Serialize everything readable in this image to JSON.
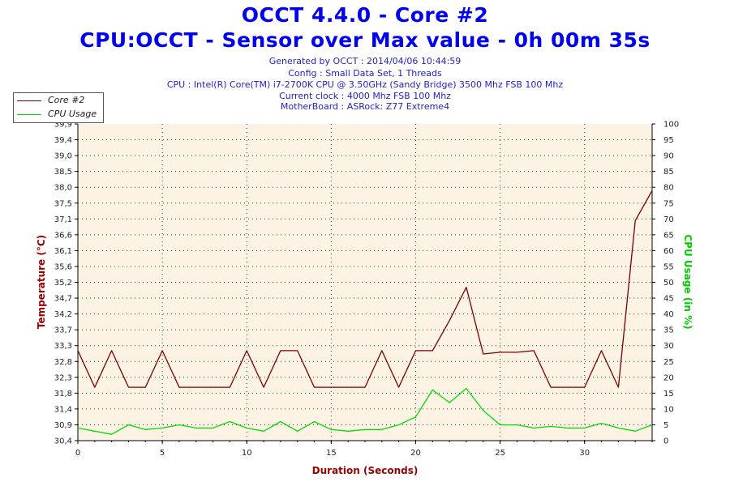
{
  "header": {
    "title": "OCCT 4.4.0 - Core #2",
    "subtitle": "CPU:OCCT - Sensor over Max value - 0h 00m 35s",
    "info_lines": [
      "Generated by OCCT : 2014/04/06 10:44:59",
      "Config : Small Data Set, 1 Threads",
      "CPU : Intel(R) Core(TM) i7-2700K CPU @ 3.50GHz (Sandy Bridge) 3500 Mhz FSB 100 Mhz",
      "Current clock : 4000 Mhz FSB 100 Mhz",
      "MotherBoard : ASRock: Z77 Extreme4"
    ]
  },
  "colors": {
    "background": "#ffffff",
    "plot_background": "#fcf3e4",
    "temperature_line": "#7a0000",
    "cpu_line": "#00dd00",
    "left_axis_title": "#990000",
    "right_axis_title": "#00cc00",
    "x_axis_title": "#990000"
  },
  "chart_data": {
    "type": "line",
    "xlabel": "Duration (Seconds)",
    "ylabel": "Temperature (°C)",
    "y2label": "CPU Usage (in %)",
    "xlim": [
      0,
      34
    ],
    "ylim": [
      30.4,
      39.9
    ],
    "y2lim": [
      0,
      100
    ],
    "x_ticks": [
      "0",
      "5",
      "10",
      "15",
      "20",
      "25",
      "30"
    ],
    "x_tick_values": [
      0,
      5,
      10,
      15,
      20,
      25,
      30
    ],
    "y_ticks": [
      "30,4",
      "30,9",
      "31,4",
      "31,8",
      "32,3",
      "32,8",
      "33,3",
      "33,7",
      "34,2",
      "34,7",
      "35,2",
      "35,6",
      "36,1",
      "36,6",
      "37,1",
      "37,5",
      "38,0",
      "38,5",
      "39,0",
      "39,4",
      "39,9"
    ],
    "y2_ticks": [
      "0",
      "5",
      "10",
      "15",
      "20",
      "25",
      "30",
      "35",
      "40",
      "45",
      "50",
      "55",
      "60",
      "65",
      "70",
      "75",
      "80",
      "85",
      "90",
      "95",
      "100"
    ],
    "grid": true,
    "legend_position": "top-left",
    "series": [
      {
        "name": "Core #2",
        "axis": "left",
        "x": [
          0,
          1,
          2,
          3,
          4,
          5,
          6,
          7,
          8,
          9,
          10,
          11,
          12,
          13,
          14,
          15,
          16,
          17,
          18,
          19,
          20,
          21,
          22,
          23,
          24,
          25,
          26,
          27,
          28,
          29,
          30,
          31,
          32,
          33,
          34
        ],
        "values": [
          33.1,
          32.0,
          33.1,
          32.0,
          32.0,
          33.1,
          32.0,
          32.0,
          32.0,
          32.0,
          33.1,
          32.0,
          33.1,
          33.1,
          32.0,
          32.0,
          32.0,
          32.0,
          33.1,
          32.0,
          33.1,
          33.1,
          34.0,
          35.0,
          33.0,
          33.05,
          33.05,
          33.1,
          32.0,
          32.0,
          32.0,
          33.1,
          32.0,
          37.0,
          37.9
        ]
      },
      {
        "name": "CPU Usage",
        "axis": "right",
        "x": [
          0,
          1,
          2,
          3,
          4,
          5,
          6,
          7,
          8,
          9,
          10,
          11,
          12,
          13,
          14,
          15,
          16,
          17,
          18,
          19,
          20,
          21,
          22,
          23,
          24,
          25,
          26,
          27,
          28,
          29,
          30,
          31,
          32,
          33,
          34
        ],
        "values": [
          4,
          3,
          2,
          5,
          3.5,
          4,
          5,
          4,
          4,
          6,
          4,
          3,
          6,
          3,
          6,
          3.5,
          3,
          3.5,
          3.5,
          5,
          7.5,
          16,
          12,
          16.5,
          9.5,
          5,
          5,
          4,
          4.5,
          4,
          4,
          5.5,
          4,
          3,
          5
        ]
      }
    ]
  }
}
